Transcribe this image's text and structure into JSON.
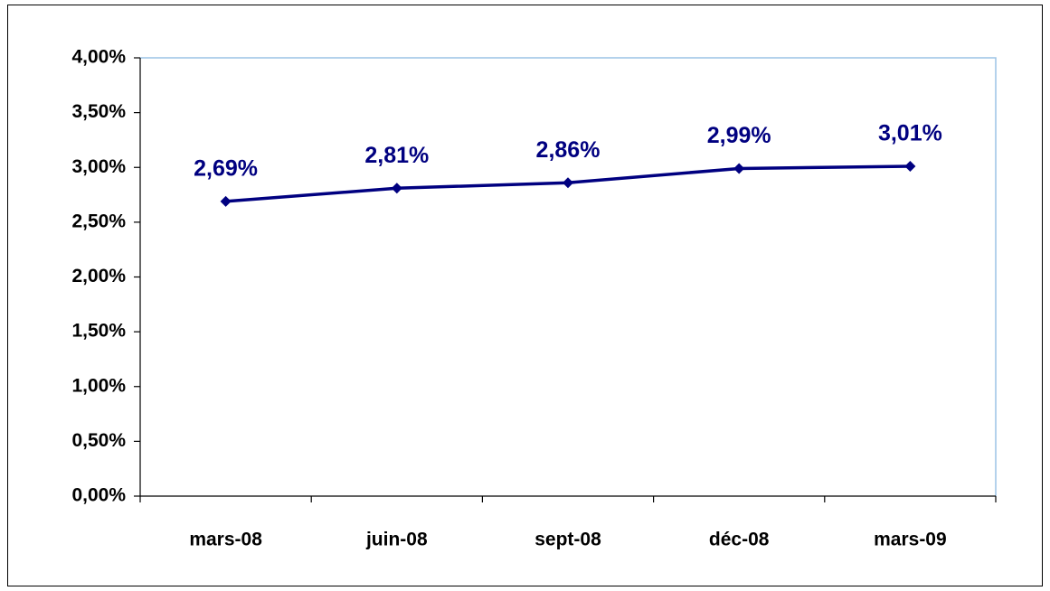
{
  "chart_data": {
    "type": "line",
    "categories": [
      "mars-08",
      "juin-08",
      "sept-08",
      "déc-08",
      "mars-09"
    ],
    "series": [
      {
        "color": "#000080",
        "values": [
          2.69,
          2.81,
          2.86,
          2.99,
          3.01
        ],
        "value_labels": [
          "2,69%",
          "2,81%",
          "2,86%",
          "2,99%",
          "3,01%"
        ]
      }
    ],
    "ylim": [
      0,
      4
    ],
    "yticks": [
      {
        "value": 0,
        "label": "0,00%"
      },
      {
        "value": 0.5,
        "label": "0,50%"
      },
      {
        "value": 1,
        "label": "1,00%"
      },
      {
        "value": 1.5,
        "label": "1,50%"
      },
      {
        "value": 2,
        "label": "2,00%"
      },
      {
        "value": 2.5,
        "label": "2,50%"
      },
      {
        "value": 3,
        "label": "3,00%"
      },
      {
        "value": 3.5,
        "label": "3,50%"
      },
      {
        "value": 4,
        "label": "4,00%"
      }
    ],
    "grid": false
  }
}
